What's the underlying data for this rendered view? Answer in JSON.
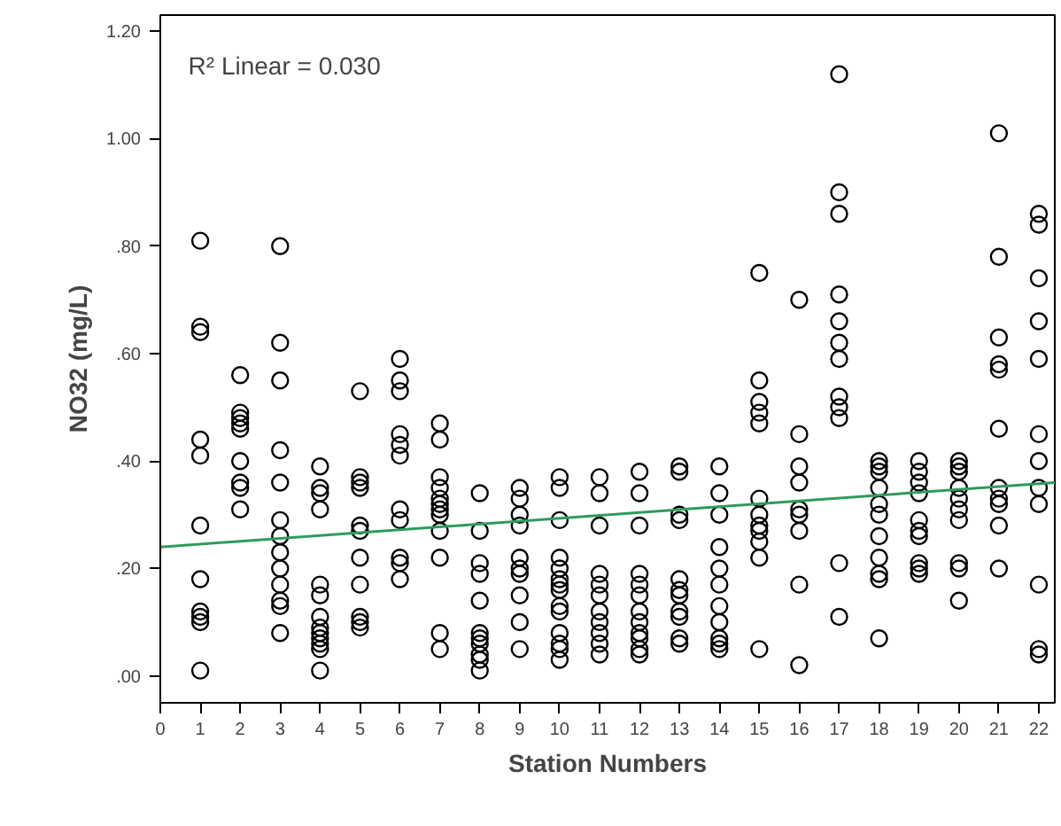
{
  "chart_data": {
    "type": "scatter",
    "xlabel": "Station Numbers",
    "ylabel": "NO32 (mg/L)",
    "xlim": [
      0,
      22.4
    ],
    "ylim": [
      -0.05,
      1.23
    ],
    "xticks": [
      0,
      1,
      2,
      3,
      4,
      5,
      6,
      7,
      8,
      9,
      10,
      11,
      12,
      13,
      14,
      15,
      16,
      17,
      18,
      19,
      20,
      21,
      22
    ],
    "yticks": [
      {
        "value": 0,
        "label": ".00"
      },
      {
        "value": 0.2,
        "label": ".20"
      },
      {
        "value": 0.4,
        "label": ".40"
      },
      {
        "value": 0.6,
        "label": ".60"
      },
      {
        "value": 0.8,
        "label": ".80"
      },
      {
        "value": 1.0,
        "label": "1.00"
      },
      {
        "value": 1.2,
        "label": "1.20"
      }
    ],
    "grid": false,
    "marker": "circle",
    "annotations": [
      "R² Linear = 0.030"
    ],
    "series": [
      {
        "color": "#000000",
        "x": [
          1,
          1,
          1,
          1,
          1,
          1,
          1,
          1,
          1,
          1,
          1,
          2,
          2,
          2,
          2,
          2,
          2,
          2,
          2,
          2,
          3,
          3,
          3,
          3,
          3,
          3,
          3,
          3,
          3,
          3,
          3,
          3,
          3,
          4,
          4,
          4,
          4,
          4,
          4,
          4,
          4,
          4,
          4,
          4,
          4,
          4,
          5,
          5,
          5,
          5,
          5,
          5,
          5,
          5,
          5,
          5,
          5,
          6,
          6,
          6,
          6,
          6,
          6,
          6,
          6,
          6,
          6,
          6,
          7,
          7,
          7,
          7,
          7,
          7,
          7,
          7,
          7,
          7,
          7,
          7,
          8,
          8,
          8,
          8,
          8,
          8,
          8,
          8,
          8,
          8,
          8,
          9,
          9,
          9,
          9,
          9,
          9,
          9,
          9,
          9,
          9,
          10,
          10,
          10,
          10,
          10,
          10,
          10,
          10,
          10,
          10,
          10,
          10,
          10,
          10,
          11,
          11,
          11,
          11,
          11,
          11,
          11,
          11,
          11,
          11,
          11,
          12,
          12,
          12,
          12,
          12,
          12,
          12,
          12,
          12,
          12,
          12,
          12,
          13,
          13,
          13,
          13,
          13,
          13,
          13,
          13,
          13,
          13,
          13,
          14,
          14,
          14,
          14,
          14,
          14,
          14,
          14,
          14,
          14,
          14,
          15,
          15,
          15,
          15,
          15,
          15,
          15,
          15,
          15,
          15,
          15,
          15,
          16,
          16,
          16,
          16,
          16,
          16,
          16,
          16,
          16,
          17,
          17,
          17,
          17,
          17,
          17,
          17,
          17,
          17,
          17,
          17,
          17,
          18,
          18,
          18,
          18,
          18,
          18,
          18,
          18,
          18,
          18,
          18,
          19,
          19,
          19,
          19,
          19,
          19,
          19,
          19,
          19,
          19,
          20,
          20,
          20,
          20,
          20,
          20,
          20,
          20,
          20,
          20,
          21,
          21,
          21,
          21,
          21,
          21,
          21,
          21,
          21,
          21,
          21,
          22,
          22,
          22,
          22,
          22,
          22,
          22,
          22,
          22,
          22,
          22,
          22
        ],
        "values": [
          0.81,
          0.65,
          0.64,
          0.44,
          0.41,
          0.28,
          0.18,
          0.12,
          0.11,
          0.1,
          0.01,
          0.56,
          0.49,
          0.48,
          0.47,
          0.46,
          0.4,
          0.36,
          0.35,
          0.31,
          0.8,
          0.62,
          0.55,
          0.42,
          0.36,
          0.29,
          0.26,
          0.23,
          0.2,
          0.17,
          0.14,
          0.13,
          0.08,
          0.39,
          0.35,
          0.34,
          0.31,
          0.17,
          0.15,
          0.11,
          0.09,
          0.08,
          0.07,
          0.06,
          0.05,
          0.01,
          0.53,
          0.37,
          0.36,
          0.35,
          0.28,
          0.27,
          0.22,
          0.17,
          0.11,
          0.1,
          0.09,
          0.59,
          0.55,
          0.53,
          0.45,
          0.43,
          0.41,
          0.31,
          0.29,
          0.22,
          0.21,
          0.18,
          0.47,
          0.44,
          0.37,
          0.35,
          0.33,
          0.32,
          0.31,
          0.3,
          0.27,
          0.22,
          0.08,
          0.05,
          0.34,
          0.27,
          0.21,
          0.19,
          0.14,
          0.08,
          0.07,
          0.06,
          0.04,
          0.03,
          0.01,
          0.35,
          0.33,
          0.3,
          0.28,
          0.22,
          0.2,
          0.19,
          0.15,
          0.1,
          0.05,
          0.37,
          0.35,
          0.29,
          0.22,
          0.2,
          0.18,
          0.17,
          0.16,
          0.13,
          0.12,
          0.08,
          0.06,
          0.05,
          0.03,
          0.37,
          0.34,
          0.28,
          0.19,
          0.17,
          0.15,
          0.12,
          0.1,
          0.08,
          0.06,
          0.04,
          0.38,
          0.34,
          0.28,
          0.19,
          0.17,
          0.15,
          0.12,
          0.1,
          0.08,
          0.07,
          0.05,
          0.04,
          0.39,
          0.38,
          0.3,
          0.29,
          0.18,
          0.16,
          0.15,
          0.12,
          0.11,
          0.07,
          0.06,
          0.39,
          0.34,
          0.3,
          0.24,
          0.2,
          0.17,
          0.13,
          0.1,
          0.07,
          0.06,
          0.05,
          0.75,
          0.55,
          0.51,
          0.49,
          0.47,
          0.33,
          0.3,
          0.28,
          0.27,
          0.25,
          0.22,
          0.05,
          0.7,
          0.45,
          0.39,
          0.36,
          0.31,
          0.3,
          0.27,
          0.17,
          0.02,
          1.12,
          0.9,
          0.86,
          0.71,
          0.66,
          0.62,
          0.59,
          0.52,
          0.5,
          0.48,
          0.21,
          0.11,
          0.4,
          0.39,
          0.38,
          0.35,
          0.32,
          0.3,
          0.26,
          0.22,
          0.19,
          0.18,
          0.07,
          0.4,
          0.38,
          0.36,
          0.34,
          0.29,
          0.27,
          0.26,
          0.21,
          0.2,
          0.19,
          0.4,
          0.39,
          0.38,
          0.35,
          0.33,
          0.31,
          0.29,
          0.21,
          0.2,
          0.14,
          1.01,
          0.78,
          0.63,
          0.58,
          0.57,
          0.46,
          0.35,
          0.33,
          0.32,
          0.28,
          0.2,
          0.86,
          0.84,
          0.74,
          0.66,
          0.59,
          0.45,
          0.4,
          0.35,
          0.32,
          0.17,
          0.05,
          0.04
        ]
      },
      {
        "type": "line",
        "marker": "none",
        "color": "#2e9b5b",
        "x": [
          0,
          22.4
        ],
        "values": [
          0.24,
          0.36
        ]
      }
    ]
  }
}
